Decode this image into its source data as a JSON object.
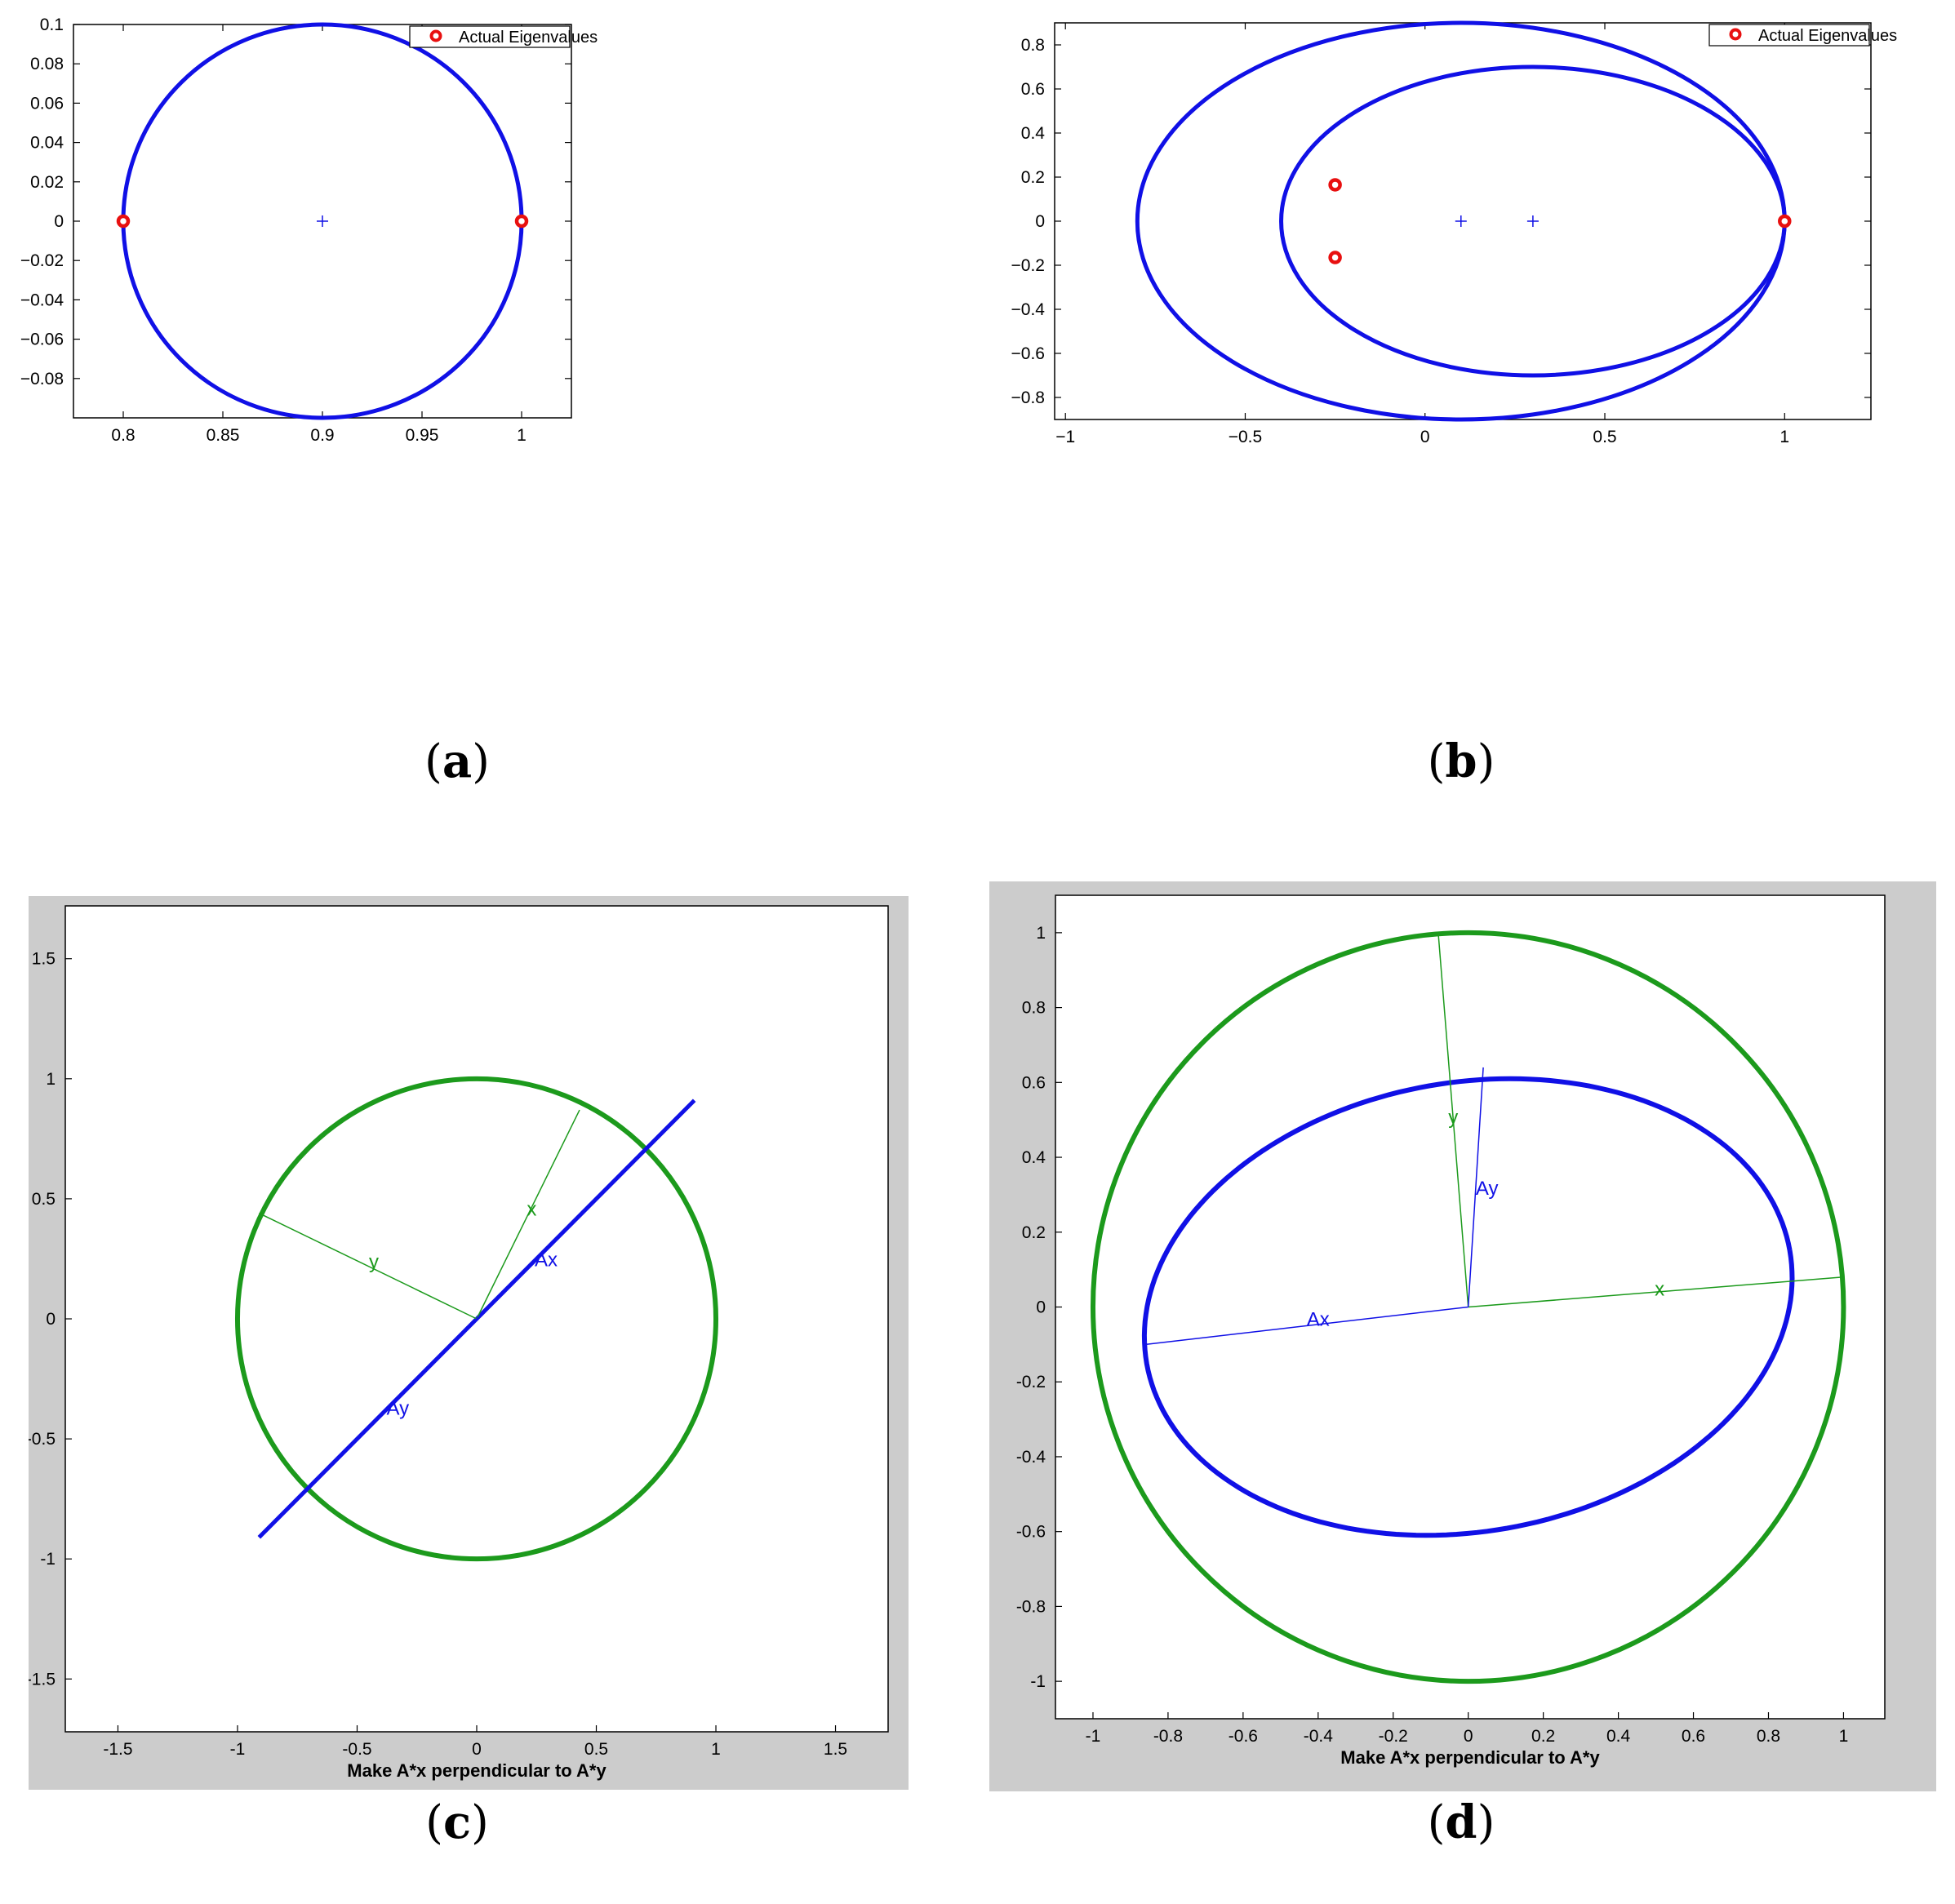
{
  "colors": {
    "blue": "#1010e6",
    "green": "#1c9a1c",
    "red": "#e81010",
    "gray_bg": "#cccccc"
  },
  "captions": {
    "a": "a",
    "b": "b",
    "c": "c",
    "d": "d"
  },
  "chart_data": [
    {
      "id": "a",
      "type": "scatter",
      "title": "",
      "xlabel": "",
      "ylabel": "",
      "xlim": [
        0.775,
        1.025
      ],
      "ylim": [
        -0.1,
        0.1
      ],
      "x_ticks": [
        0.8,
        0.85,
        0.9,
        0.95,
        1
      ],
      "x_tick_labels": [
        "0.8",
        "0.85",
        "0.9",
        "0.95",
        "1"
      ],
      "y_ticks": [
        0.1,
        0.08,
        0.06,
        0.04,
        0.02,
        0,
        -0.02,
        -0.04,
        -0.06,
        -0.08
      ],
      "y_tick_labels": [
        "0.1",
        "0.08",
        "0.06",
        "0.04",
        "0.02",
        "0",
        "−0.02",
        "−0.04",
        "−0.06",
        "−0.08"
      ],
      "legend": {
        "position": "top-right",
        "entries": [
          "Actual Eigenvalues"
        ]
      },
      "circles": [
        {
          "cx": 0.9,
          "cy": 0,
          "rx": 0.1,
          "ry": 0.1
        }
      ],
      "centers": [
        {
          "x": 0.9,
          "y": 0
        }
      ],
      "eigenvalues": [
        {
          "x": 0.8,
          "y": 0
        },
        {
          "x": 1.0,
          "y": 0
        }
      ]
    },
    {
      "id": "b",
      "type": "scatter",
      "title": "",
      "xlabel": "",
      "ylabel": "",
      "xlim": [
        -1.03,
        1.24
      ],
      "ylim": [
        -0.9,
        0.9
      ],
      "x_ticks": [
        -1,
        -0.5,
        0,
        0.5,
        1
      ],
      "x_tick_labels": [
        "−1",
        "−0.5",
        "0",
        "0.5",
        "1"
      ],
      "y_ticks": [
        0.8,
        0.6,
        0.4,
        0.2,
        0,
        -0.2,
        -0.4,
        -0.6,
        -0.8
      ],
      "y_tick_labels": [
        "0.8",
        "0.6",
        "0.4",
        "0.2",
        "0",
        "−0.2",
        "−0.4",
        "−0.6",
        "−0.8"
      ],
      "legend": {
        "position": "top-right",
        "entries": [
          "Actual Eigenvalues"
        ]
      },
      "circles": [
        {
          "cx": 0.1,
          "cy": 0,
          "rx": 0.9,
          "ry": 0.9
        },
        {
          "cx": 0.3,
          "cy": 0,
          "rx": 0.7,
          "ry": 0.7
        }
      ],
      "centers": [
        {
          "x": 0.1,
          "y": 0
        },
        {
          "x": 0.3,
          "y": 0
        }
      ],
      "eigenvalues": [
        {
          "x": -0.25,
          "y": 0.165
        },
        {
          "x": -0.25,
          "y": -0.165
        },
        {
          "x": 1.0,
          "y": 0
        }
      ]
    },
    {
      "id": "c",
      "type": "line",
      "title": "",
      "xlabel": "Make A*x perpendicular to A*y",
      "ylabel": "",
      "xlim": [
        -1.72,
        1.72
      ],
      "ylim": [
        -1.72,
        1.72
      ],
      "x_ticks": [
        -1.5,
        -1,
        -0.5,
        0,
        0.5,
        1,
        1.5
      ],
      "x_tick_labels": [
        "-1.5",
        "-1",
        "-0.5",
        "0",
        "0.5",
        "1",
        "1.5"
      ],
      "y_ticks": [
        1.5,
        1,
        0.5,
        0,
        -0.5,
        -1,
        -1.5
      ],
      "y_tick_labels": [
        "1.5",
        "1",
        "0.5",
        "0",
        "-0.5",
        "-1",
        "-1.5"
      ],
      "unit_circle": {
        "cx": 0,
        "cy": 0,
        "r": 1
      },
      "image_segment": {
        "x1": -0.91,
        "y1": -0.91,
        "x2": 0.91,
        "y2": 0.91
      },
      "vectors": [
        {
          "name": "x",
          "x": 0.43,
          "y": 0.87,
          "color": "green",
          "label_at": [
            0.23,
            0.43
          ]
        },
        {
          "name": "y",
          "x": -0.91,
          "y": 0.44,
          "color": "green",
          "label_at": [
            -0.43,
            0.21
          ]
        },
        {
          "name": "Ax",
          "x": 0.66,
          "y": 0.66,
          "color": "blue",
          "label_at": [
            0.29,
            0.22
          ]
        },
        {
          "name": "Ay",
          "x": -0.42,
          "y": -0.42,
          "color": "blue",
          "label_at": [
            -0.33,
            -0.4
          ]
        }
      ]
    },
    {
      "id": "d",
      "type": "line",
      "title": "",
      "xlabel": "Make A*x perpendicular to A*y",
      "ylabel": "",
      "xlim": [
        -1.1,
        1.11
      ],
      "ylim": [
        -1.1,
        1.1
      ],
      "x_ticks": [
        -1,
        -0.8,
        -0.6,
        -0.4,
        -0.2,
        0,
        0.2,
        0.4,
        0.6,
        0.8,
        1
      ],
      "x_tick_labels": [
        "-1",
        "-0.8",
        "-0.6",
        "-0.4",
        "-0.2",
        "0",
        "0.2",
        "0.4",
        "0.6",
        "0.8",
        "1"
      ],
      "y_ticks": [
        1,
        0.8,
        0.6,
        0.4,
        0.2,
        0,
        -0.2,
        -0.4,
        -0.6,
        -0.8,
        -1
      ],
      "y_tick_labels": [
        "1",
        "0.8",
        "0.6",
        "0.4",
        "0.2",
        "0",
        "-0.2",
        "-0.4",
        "-0.6",
        "-0.8",
        "-1"
      ],
      "unit_circle": {
        "cx": 0,
        "cy": 0,
        "r": 1
      },
      "image_ellipse": {
        "cx": 0,
        "cy": 0,
        "a": 0.87,
        "b": 0.6,
        "angle_deg": 10
      },
      "vectors": [
        {
          "name": "x",
          "x": 1.0,
          "y": 0.08,
          "color": "green",
          "label_at": [
            0.51,
            0.03
          ]
        },
        {
          "name": "y",
          "x": -0.08,
          "y": 1.0,
          "color": "green",
          "label_at": [
            -0.04,
            0.49
          ]
        },
        {
          "name": "Ax",
          "x": -0.86,
          "y": -0.1,
          "color": "blue",
          "label_at": [
            -0.4,
            -0.05
          ]
        },
        {
          "name": "Ay",
          "x": 0.04,
          "y": 0.64,
          "color": "blue",
          "label_at": [
            0.05,
            0.3
          ]
        }
      ]
    }
  ]
}
